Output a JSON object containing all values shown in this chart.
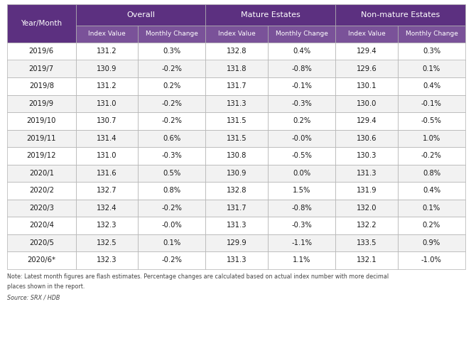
{
  "col1_header": "Year/Month",
  "group_headers": [
    "Overall",
    "Mature Estates",
    "Non-mature Estates"
  ],
  "sub_headers": [
    "Index Value",
    "Monthly Change",
    "Index Value",
    "Monthly Change",
    "Index Value",
    "Monthly Change"
  ],
  "rows": [
    [
      "2019/6",
      "131.2",
      "0.3%",
      "132.8",
      "0.4%",
      "129.4",
      "0.3%"
    ],
    [
      "2019/7",
      "130.9",
      "-0.2%",
      "131.8",
      "-0.8%",
      "129.6",
      "0.1%"
    ],
    [
      "2019/8",
      "131.2",
      "0.2%",
      "131.7",
      "-0.1%",
      "130.1",
      "0.4%"
    ],
    [
      "2019/9",
      "131.0",
      "-0.2%",
      "131.3",
      "-0.3%",
      "130.0",
      "-0.1%"
    ],
    [
      "2019/10",
      "130.7",
      "-0.2%",
      "131.5",
      "0.2%",
      "129.4",
      "-0.5%"
    ],
    [
      "2019/11",
      "131.4",
      "0.6%",
      "131.5",
      "-0.0%",
      "130.6",
      "1.0%"
    ],
    [
      "2019/12",
      "131.0",
      "-0.3%",
      "130.8",
      "-0.5%",
      "130.3",
      "-0.2%"
    ],
    [
      "2020/1",
      "131.6",
      "0.5%",
      "130.9",
      "0.0%",
      "131.3",
      "0.8%"
    ],
    [
      "2020/2",
      "132.7",
      "0.8%",
      "132.8",
      "1.5%",
      "131.9",
      "0.4%"
    ],
    [
      "2020/3",
      "132.4",
      "-0.2%",
      "131.7",
      "-0.8%",
      "132.0",
      "0.1%"
    ],
    [
      "2020/4",
      "132.3",
      "-0.0%",
      "131.3",
      "-0.3%",
      "132.2",
      "0.2%"
    ],
    [
      "2020/5",
      "132.5",
      "0.1%",
      "129.9",
      "-1.1%",
      "133.5",
      "0.9%"
    ],
    [
      "2020/6*",
      "132.3",
      "-0.2%",
      "131.3",
      "1.1%",
      "132.1",
      "-1.0%"
    ]
  ],
  "note1": "Note: Latest month figures are flash estimates. Percentage changes are calculated based on actual index number with more decimal",
  "note2": "places shown in the report.",
  "source": "Source: SRX / HDB",
  "header_bg": "#5c3080",
  "subheader_bg": "#7a5299",
  "row_bg_even": "#ffffff",
  "row_bg_odd": "#f2f2f2",
  "header_text_color": "#ffffff",
  "cell_text_color": "#1a1a1a",
  "border_color": "#b0b0b0",
  "note_text_color": "#444444",
  "fig_width": 6.63,
  "fig_height": 4.97,
  "dpi": 100
}
